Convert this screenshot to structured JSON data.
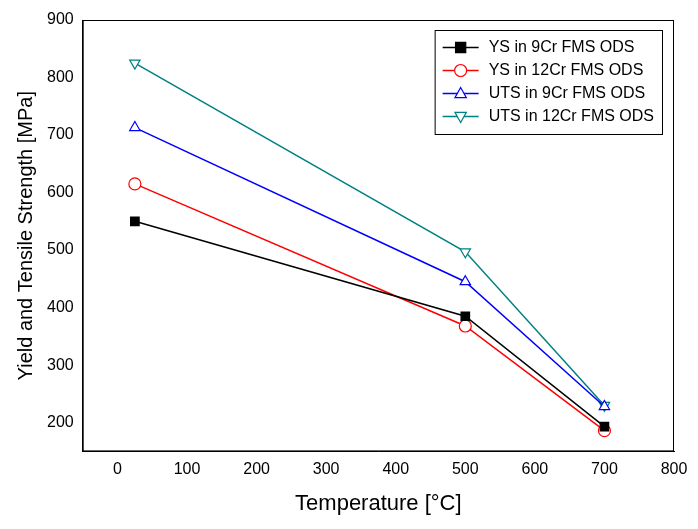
{
  "chart_data": {
    "type": "line",
    "x_label": "Temperature [°C]",
    "y_label": "Yield and Tensile Strength [MPa]",
    "x": [
      25,
      500,
      700
    ],
    "series": [
      {
        "name": "YS in 9Cr FMS ODS",
        "color": "#000000",
        "marker": "filled_square",
        "values": [
          550,
          385,
          193
        ]
      },
      {
        "name": "YS in 12Cr FMS ODS",
        "color": "#ff0000",
        "marker": "open_circle",
        "values": [
          615,
          368,
          186
        ]
      },
      {
        "name": "UTS in 9Cr FMS ODS",
        "color": "#0000ff",
        "marker": "open_triangle_up",
        "values": [
          713,
          445,
          228
        ]
      },
      {
        "name": "UTS in 12Cr FMS ODS",
        "color": "#008080",
        "marker": "open_triangle_down",
        "values": [
          825,
          497,
          230
        ]
      }
    ],
    "xlim": [
      -50,
      800
    ],
    "xticks": [
      0,
      100,
      200,
      300,
      400,
      500,
      600,
      700,
      800
    ],
    "ylim": [
      150,
      900
    ],
    "yticks": [
      200,
      300,
      400,
      500,
      600,
      700,
      800,
      900
    ],
    "grid": false,
    "legend": "upper right"
  }
}
